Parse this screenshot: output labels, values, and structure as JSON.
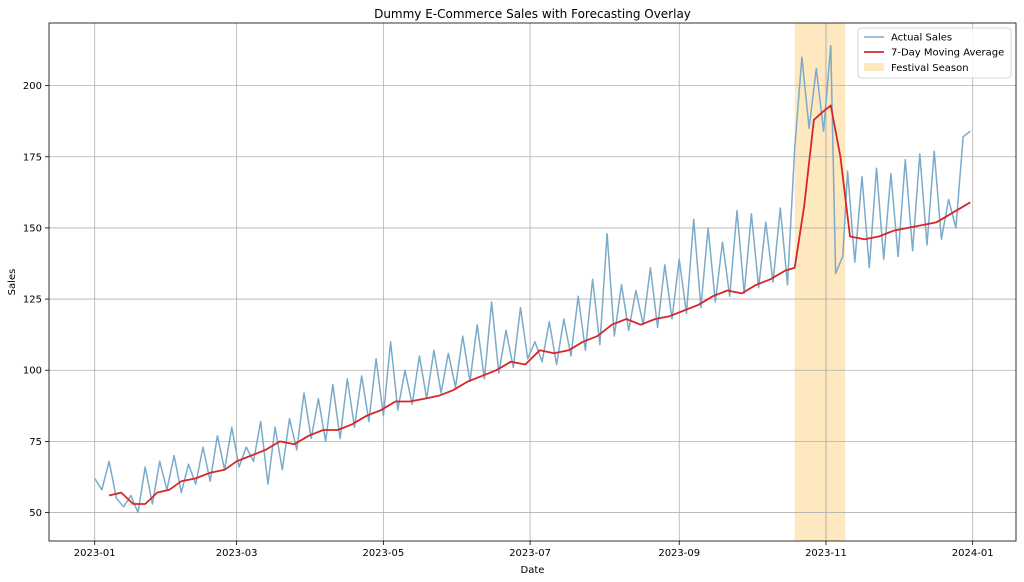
{
  "chart_data": {
    "type": "line",
    "title": "Dummy E-Commerce Sales with Forecasting Overlay",
    "xlabel": "Date",
    "ylabel": "Sales",
    "x_range": [
      "2022-12-13",
      "2024-01-19"
    ],
    "ylim": [
      40,
      222
    ],
    "grid": true,
    "legend_position": "top-right",
    "x_ticks": [
      "2023-01",
      "2023-03",
      "2023-05",
      "2023-07",
      "2023-09",
      "2023-11",
      "2024-01"
    ],
    "y_ticks": [
      50,
      75,
      100,
      125,
      150,
      175,
      200
    ],
    "series": [
      {
        "name": "Actual Sales",
        "color": "#7aabcb",
        "points": [
          [
            "2023-01-01",
            62
          ],
          [
            "2023-01-04",
            58
          ],
          [
            "2023-01-07",
            68
          ],
          [
            "2023-01-10",
            55
          ],
          [
            "2023-01-13",
            52
          ],
          [
            "2023-01-16",
            56
          ],
          [
            "2023-01-19",
            50
          ],
          [
            "2023-01-22",
            66
          ],
          [
            "2023-01-25",
            53
          ],
          [
            "2023-01-28",
            68
          ],
          [
            "2023-01-31",
            58
          ],
          [
            "2023-02-03",
            70
          ],
          [
            "2023-02-06",
            57
          ],
          [
            "2023-02-09",
            67
          ],
          [
            "2023-02-12",
            60
          ],
          [
            "2023-02-15",
            73
          ],
          [
            "2023-02-18",
            61
          ],
          [
            "2023-02-21",
            77
          ],
          [
            "2023-02-24",
            65
          ],
          [
            "2023-02-27",
            80
          ],
          [
            "2023-03-02",
            66
          ],
          [
            "2023-03-05",
            73
          ],
          [
            "2023-03-08",
            68
          ],
          [
            "2023-03-11",
            82
          ],
          [
            "2023-03-14",
            60
          ],
          [
            "2023-03-17",
            80
          ],
          [
            "2023-03-20",
            65
          ],
          [
            "2023-03-23",
            83
          ],
          [
            "2023-03-26",
            72
          ],
          [
            "2023-03-29",
            92
          ],
          [
            "2023-04-01",
            76
          ],
          [
            "2023-04-04",
            90
          ],
          [
            "2023-04-07",
            75
          ],
          [
            "2023-04-10",
            95
          ],
          [
            "2023-04-13",
            76
          ],
          [
            "2023-04-16",
            97
          ],
          [
            "2023-04-19",
            80
          ],
          [
            "2023-04-22",
            98
          ],
          [
            "2023-04-25",
            82
          ],
          [
            "2023-04-28",
            104
          ],
          [
            "2023-05-01",
            84
          ],
          [
            "2023-05-04",
            110
          ],
          [
            "2023-05-07",
            86
          ],
          [
            "2023-05-10",
            100
          ],
          [
            "2023-05-13",
            88
          ],
          [
            "2023-05-16",
            105
          ],
          [
            "2023-05-19",
            90
          ],
          [
            "2023-05-22",
            107
          ],
          [
            "2023-05-25",
            92
          ],
          [
            "2023-05-28",
            106
          ],
          [
            "2023-05-31",
            94
          ],
          [
            "2023-06-03",
            112
          ],
          [
            "2023-06-06",
            96
          ],
          [
            "2023-06-09",
            116
          ],
          [
            "2023-06-12",
            97
          ],
          [
            "2023-06-15",
            124
          ],
          [
            "2023-06-18",
            99
          ],
          [
            "2023-06-21",
            114
          ],
          [
            "2023-06-24",
            101
          ],
          [
            "2023-06-27",
            122
          ],
          [
            "2023-06-30",
            104
          ],
          [
            "2023-07-03",
            110
          ],
          [
            "2023-07-06",
            103
          ],
          [
            "2023-07-09",
            117
          ],
          [
            "2023-07-12",
            102
          ],
          [
            "2023-07-15",
            118
          ],
          [
            "2023-07-18",
            105
          ],
          [
            "2023-07-21",
            126
          ],
          [
            "2023-07-24",
            107
          ],
          [
            "2023-07-27",
            132
          ],
          [
            "2023-07-30",
            109
          ],
          [
            "2023-08-02",
            148
          ],
          [
            "2023-08-05",
            112
          ],
          [
            "2023-08-08",
            130
          ],
          [
            "2023-08-11",
            114
          ],
          [
            "2023-08-14",
            128
          ],
          [
            "2023-08-17",
            116
          ],
          [
            "2023-08-20",
            136
          ],
          [
            "2023-08-23",
            115
          ],
          [
            "2023-08-26",
            137
          ],
          [
            "2023-08-29",
            118
          ],
          [
            "2023-09-01",
            139
          ],
          [
            "2023-09-04",
            120
          ],
          [
            "2023-09-07",
            153
          ],
          [
            "2023-09-10",
            122
          ],
          [
            "2023-09-13",
            150
          ],
          [
            "2023-09-16",
            124
          ],
          [
            "2023-09-19",
            145
          ],
          [
            "2023-09-22",
            126
          ],
          [
            "2023-09-25",
            156
          ],
          [
            "2023-09-28",
            127
          ],
          [
            "2023-10-01",
            155
          ],
          [
            "2023-10-04",
            129
          ],
          [
            "2023-10-07",
            152
          ],
          [
            "2023-10-10",
            131
          ],
          [
            "2023-10-13",
            157
          ],
          [
            "2023-10-16",
            130
          ],
          [
            "2023-10-19",
            178
          ],
          [
            "2023-10-22",
            210
          ],
          [
            "2023-10-25",
            185
          ],
          [
            "2023-10-28",
            206
          ],
          [
            "2023-10-31",
            184
          ],
          [
            "2023-11-03",
            214
          ],
          [
            "2023-11-05",
            134
          ],
          [
            "2023-11-08",
            140
          ],
          [
            "2023-11-10",
            170
          ],
          [
            "2023-11-13",
            138
          ],
          [
            "2023-11-16",
            168
          ],
          [
            "2023-11-19",
            136
          ],
          [
            "2023-11-22",
            171
          ],
          [
            "2023-11-25",
            139
          ],
          [
            "2023-11-28",
            169
          ],
          [
            "2023-12-01",
            140
          ],
          [
            "2023-12-04",
            174
          ],
          [
            "2023-12-07",
            142
          ],
          [
            "2023-12-10",
            176
          ],
          [
            "2023-12-13",
            144
          ],
          [
            "2023-12-16",
            177
          ],
          [
            "2023-12-19",
            146
          ],
          [
            "2023-12-22",
            160
          ],
          [
            "2023-12-25",
            150
          ],
          [
            "2023-12-28",
            182
          ],
          [
            "2023-12-31",
            184
          ]
        ]
      },
      {
        "name": "7-Day Moving Average",
        "color": "#d62728",
        "points": [
          [
            "2023-01-07",
            56
          ],
          [
            "2023-01-12",
            57
          ],
          [
            "2023-01-17",
            53
          ],
          [
            "2023-01-22",
            53
          ],
          [
            "2023-01-27",
            57
          ],
          [
            "2023-02-01",
            58
          ],
          [
            "2023-02-06",
            61
          ],
          [
            "2023-02-12",
            62
          ],
          [
            "2023-02-18",
            64
          ],
          [
            "2023-02-24",
            65
          ],
          [
            "2023-03-01",
            68
          ],
          [
            "2023-03-07",
            70
          ],
          [
            "2023-03-13",
            72
          ],
          [
            "2023-03-19",
            75
          ],
          [
            "2023-03-25",
            74
          ],
          [
            "2023-03-31",
            77
          ],
          [
            "2023-04-06",
            79
          ],
          [
            "2023-04-12",
            79
          ],
          [
            "2023-04-18",
            81
          ],
          [
            "2023-04-24",
            84
          ],
          [
            "2023-04-30",
            86
          ],
          [
            "2023-05-06",
            89
          ],
          [
            "2023-05-12",
            89
          ],
          [
            "2023-05-18",
            90
          ],
          [
            "2023-05-24",
            91
          ],
          [
            "2023-05-30",
            93
          ],
          [
            "2023-06-05",
            96
          ],
          [
            "2023-06-11",
            98
          ],
          [
            "2023-06-17",
            100
          ],
          [
            "2023-06-23",
            103
          ],
          [
            "2023-06-29",
            102
          ],
          [
            "2023-07-05",
            107
          ],
          [
            "2023-07-11",
            106
          ],
          [
            "2023-07-17",
            107
          ],
          [
            "2023-07-23",
            110
          ],
          [
            "2023-07-29",
            112
          ],
          [
            "2023-08-04",
            116
          ],
          [
            "2023-08-10",
            118
          ],
          [
            "2023-08-16",
            116
          ],
          [
            "2023-08-22",
            118
          ],
          [
            "2023-08-28",
            119
          ],
          [
            "2023-09-03",
            121
          ],
          [
            "2023-09-09",
            123
          ],
          [
            "2023-09-15",
            126
          ],
          [
            "2023-09-21",
            128
          ],
          [
            "2023-09-27",
            127
          ],
          [
            "2023-10-03",
            130
          ],
          [
            "2023-10-09",
            132
          ],
          [
            "2023-10-15",
            135
          ],
          [
            "2023-10-19",
            136
          ],
          [
            "2023-10-23",
            158
          ],
          [
            "2023-10-27",
            188
          ],
          [
            "2023-10-31",
            191
          ],
          [
            "2023-11-03",
            193
          ],
          [
            "2023-11-07",
            175
          ],
          [
            "2023-11-11",
            147
          ],
          [
            "2023-11-17",
            146
          ],
          [
            "2023-11-23",
            147
          ],
          [
            "2023-11-29",
            149
          ],
          [
            "2023-12-05",
            150
          ],
          [
            "2023-12-11",
            151
          ],
          [
            "2023-12-17",
            152
          ],
          [
            "2023-12-23",
            155
          ],
          [
            "2023-12-31",
            159
          ]
        ]
      }
    ],
    "shaded_regions": [
      {
        "name": "Festival Season",
        "start": "2023-10-19",
        "end": "2023-11-09",
        "color": "#fde8bf"
      }
    ],
    "vertical_marker": "2023-11-01"
  }
}
